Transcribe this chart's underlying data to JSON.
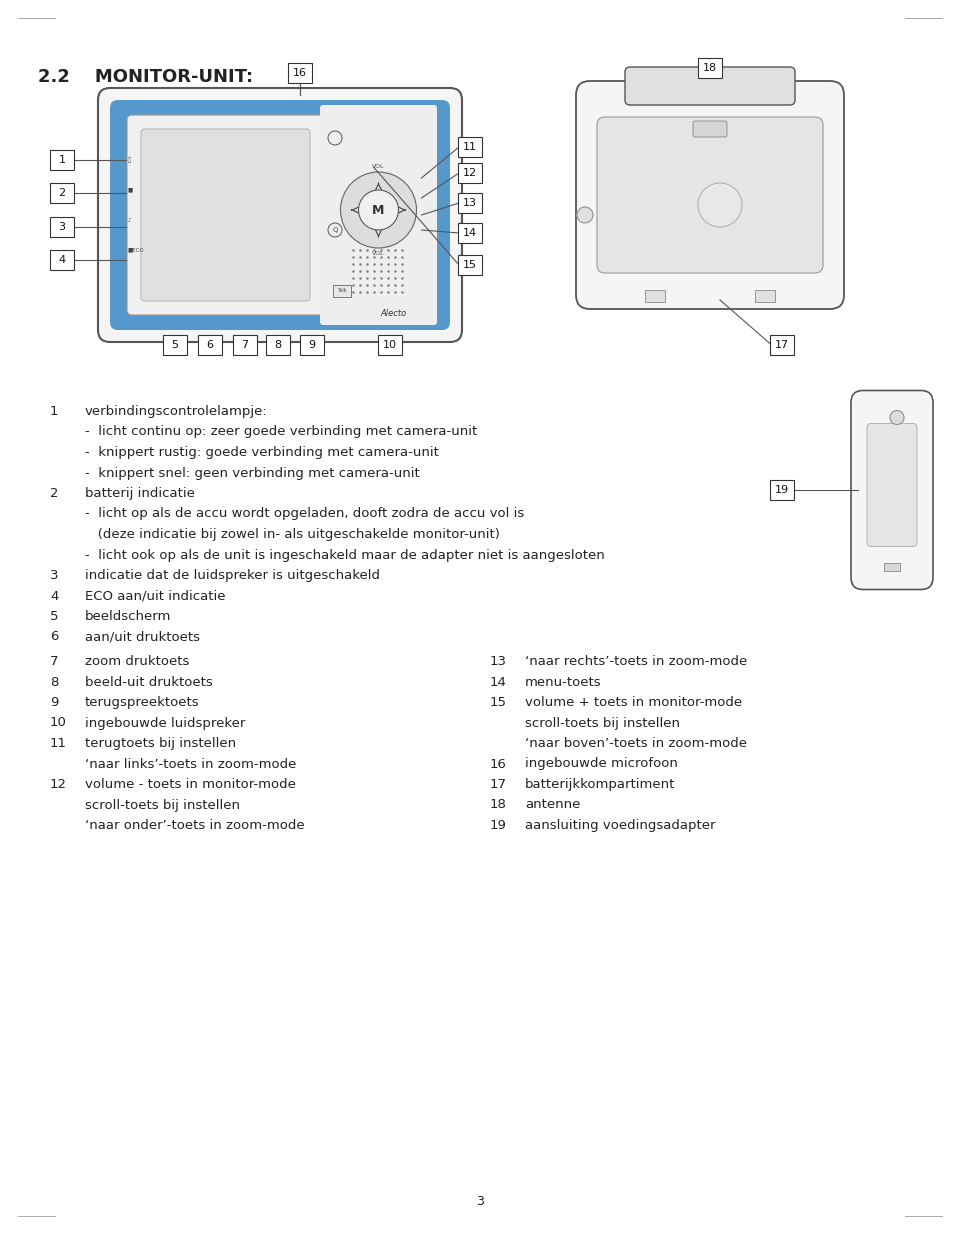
{
  "title": "2.2    MONITOR-UNIT:",
  "bg_color": "#ffffff",
  "text_color": "#222222",
  "page_number": "3",
  "description_lines": [
    {
      "num": "1",
      "text": "verbindingscontrolelampje:",
      "indent": 0
    },
    {
      "num": "",
      "text": "-  licht continu op: zeer goede verbinding met camera-unit",
      "indent": 1
    },
    {
      "num": "",
      "text": "-  knippert rustig: goede verbinding met camera-unit",
      "indent": 1
    },
    {
      "num": "",
      "text": "-  knippert snel: geen verbinding met camera-unit",
      "indent": 1
    },
    {
      "num": "2",
      "text": "batterij indicatie",
      "indent": 0
    },
    {
      "num": "",
      "text": "-  licht op als de accu wordt opgeladen, dooft zodra de accu vol is",
      "indent": 1
    },
    {
      "num": "",
      "text": "   (deze indicatie bij zowel in- als uitgeschakelde monitor-unit)",
      "indent": 1
    },
    {
      "num": "",
      "text": "-  licht ook op als de unit is ingeschakeld maar de adapter niet is aangesloten",
      "indent": 1
    },
    {
      "num": "3",
      "text": "indicatie dat de luidspreker is uitgeschakeld",
      "indent": 0
    },
    {
      "num": "4",
      "text": "ECO aan/uit indicatie",
      "indent": 0
    },
    {
      "num": "5",
      "text": "beeldscherm",
      "indent": 0
    },
    {
      "num": "6",
      "text": "aan/uit druktoets",
      "indent": 0
    }
  ],
  "two_col_lines": [
    {
      "ln": "7",
      "lt": "zoom druktoets",
      "rn": "13",
      "rt": "‘naar rechts’-toets in zoom-mode"
    },
    {
      "ln": "8",
      "lt": "beeld-uit druktoets",
      "rn": "14",
      "rt": "menu-toets"
    },
    {
      "ln": "9",
      "lt": "terugspreektoets",
      "rn": "15",
      "rt": "volume + toets in monitor-mode"
    },
    {
      "ln": "10",
      "lt": "ingebouwde luidspreker",
      "rn": "",
      "rt": "scroll-toets bij instellen"
    },
    {
      "ln": "11",
      "lt": "terugtoets bij instellen",
      "rn": "",
      "rt": "‘naar boven’-toets in zoom-mode"
    },
    {
      "ln": "",
      "lt": "‘naar links’-toets in zoom-mode",
      "rn": "16",
      "rt": "ingebouwde microfoon"
    },
    {
      "ln": "12",
      "lt": "volume - toets in monitor-mode",
      "rn": "17",
      "rt": "batterijkkompartiment"
    },
    {
      "ln": "",
      "lt": "scroll-toets bij instellen",
      "rn": "18",
      "rt": "antenne"
    },
    {
      "ln": "",
      "lt": "‘naar onder’-toets in zoom-mode",
      "rn": "19",
      "rt": "aansluiting voedingsadapter"
    }
  ],
  "label_box_color": "#ffffff",
  "label_box_edge": "#333333",
  "line_color": "#555555",
  "device_edge": "#555555",
  "device_fill": "#f5f5f5",
  "blue_fill": "#5599cc",
  "blue_edge": "#3366aa",
  "inner_fill": "#e8e8e8",
  "inner_edge": "#888888"
}
